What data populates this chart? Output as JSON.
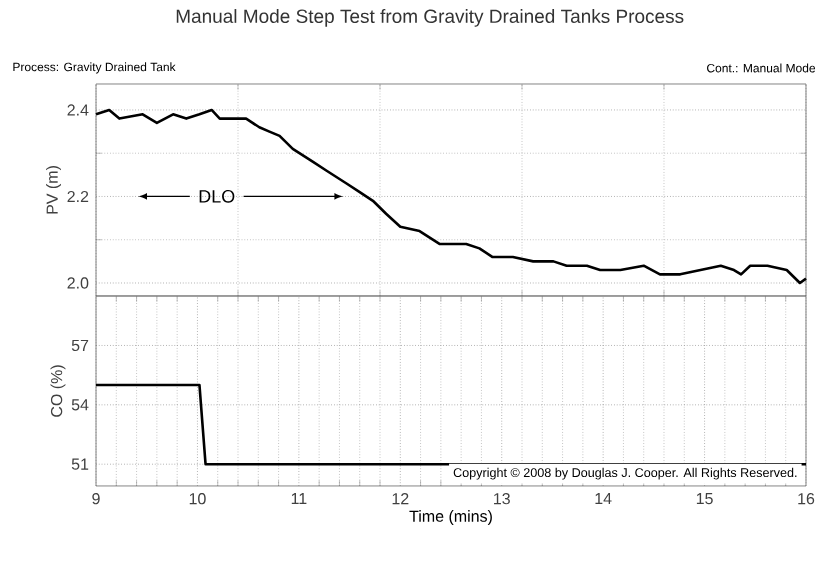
{
  "chart_data": [
    {
      "type": "line",
      "title": "Manual Mode Step Test from Gravity Drained Tanks Process",
      "ylabel": "PV (m)",
      "annotations": [
        "Process: Gravity Drained Tank",
        "Cont.: Manual Mode",
        "DLO"
      ],
      "xlim": [
        9,
        16
      ],
      "ylim": [
        1.97,
        2.46
      ],
      "yticks": [
        {
          "value": 2.0,
          "label": "2.0"
        },
        {
          "value": 2.2,
          "label": "2.2"
        },
        {
          "value": 2.4,
          "label": "2.4"
        }
      ],
      "tick_labels": "y",
      "grid": true,
      "marker": "none",
      "line_style": "solid",
      "series": [
        {
          "color": "#000000",
          "x": [
            9.0,
            9.13,
            9.23,
            9.46,
            9.6,
            9.76,
            9.89,
            10.02,
            10.14,
            10.22,
            10.48,
            10.61,
            10.71,
            10.81,
            10.94,
            11.14,
            11.27,
            11.47,
            11.6,
            11.73,
            11.86,
            12.0,
            12.19,
            12.39,
            12.65,
            12.78,
            12.91,
            13.11,
            13.31,
            13.51,
            13.64,
            13.84,
            13.97,
            14.17,
            14.4,
            14.56,
            14.76,
            14.96,
            15.16,
            15.29,
            15.36,
            15.45,
            15.62,
            15.81,
            15.94,
            16.0
          ],
          "values": [
            2.39,
            2.4,
            2.38,
            2.39,
            2.37,
            2.39,
            2.38,
            2.39,
            2.4,
            2.38,
            2.38,
            2.36,
            2.35,
            2.34,
            2.31,
            2.28,
            2.26,
            2.23,
            2.21,
            2.19,
            2.16,
            2.13,
            2.12,
            2.09,
            2.09,
            2.08,
            2.06,
            2.06,
            2.05,
            2.05,
            2.04,
            2.04,
            2.03,
            2.03,
            2.04,
            2.02,
            2.02,
            2.03,
            2.04,
            2.03,
            2.02,
            2.04,
            2.04,
            2.03,
            2.0,
            2.01
          ]
        }
      ]
    },
    {
      "type": "line",
      "xlabel": "Time (mins)",
      "ylabel": "CO (%)",
      "annotations": [
        "Copyright © 2008 by Douglas J. Cooper. All Rights Reserved."
      ],
      "xlim": [
        9,
        16
      ],
      "ylim": [
        49.9,
        59.5
      ],
      "xticks": [
        9,
        10,
        11,
        12,
        13,
        14,
        15,
        16
      ],
      "yticks": [
        51,
        54,
        57
      ],
      "grid": true,
      "marker": "none",
      "line_style": "solid",
      "series": [
        {
          "color": "#000000",
          "x": [
            9.0,
            10.02,
            10.08,
            16.0
          ],
          "values": [
            55,
            55,
            51,
            51
          ]
        }
      ]
    }
  ]
}
